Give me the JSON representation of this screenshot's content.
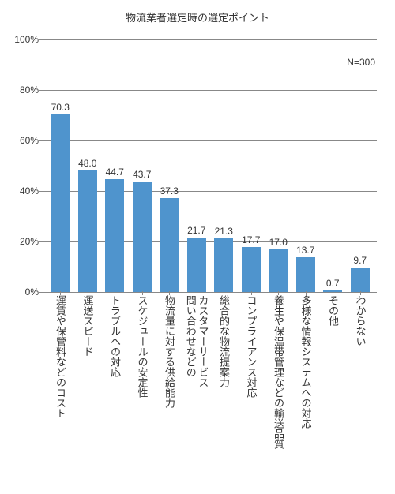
{
  "chart": {
    "type": "bar",
    "title": "物流業者選定時の選定ポイント",
    "subtitle": "N=300",
    "title_fontsize": 13,
    "label_fontsize": 13,
    "value_fontsize": 12,
    "tick_fontsize": 12,
    "bar_color": "#4f94cd",
    "background_color": "#ffffff",
    "grid_color": "#888888",
    "bar_width_ratio": 0.7,
    "y": {
      "min": 0,
      "max": 100,
      "tick_step": 20,
      "suffix": "%"
    },
    "categories": [
      "運賃や保管料などのコスト",
      "運送スピード",
      "トラブルへの対応",
      "スケジュールの安定性",
      "物流量に対する供給能力",
      "問い合わせなどの\nカスタマーサービス",
      "総合的な物流提案力",
      "コンプライアンス対応",
      "養生や保温帯管理などの輸送品質",
      "多様な情報システムへの対応",
      "その他",
      "わからない"
    ],
    "values": [
      70.3,
      48.0,
      44.7,
      43.7,
      37.3,
      21.7,
      21.3,
      17.7,
      17.0,
      13.7,
      0.7,
      9.7
    ],
    "value_labels": [
      "70.3",
      "48.0",
      "44.7",
      "43.7",
      "37.3",
      "21.7",
      "21.3",
      "17.7",
      "17.0",
      "13.7",
      "0.7",
      "9.7"
    ]
  }
}
